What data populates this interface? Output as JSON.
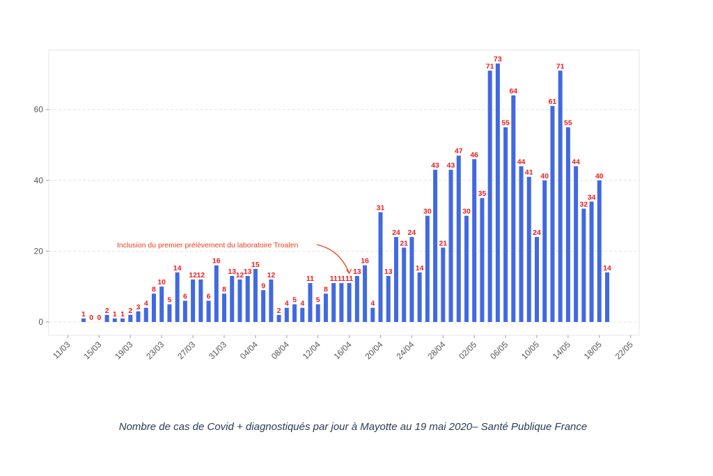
{
  "chart_data": {
    "type": "bar",
    "title": "",
    "xlabel": "",
    "ylabel": "",
    "ylim": [
      0,
      75
    ],
    "y_ticks": [
      0,
      20,
      40,
      60
    ],
    "grid": true,
    "colors": {
      "bar": "#4169e1",
      "label": "#ee1c1c",
      "annotation": "#ee3b1c",
      "grid": "#e3e3e3"
    },
    "x_ticks": [
      "11/03",
      "15/03",
      "19/03",
      "23/03",
      "27/03",
      "31/03",
      "04/04",
      "08/04",
      "12/04",
      "16/04",
      "20/04",
      "24/04",
      "28/04",
      "02/05",
      "06/05",
      "10/05",
      "14/05",
      "18/05",
      "22/05"
    ],
    "categories": [
      "13/03",
      "14/03",
      "15/03",
      "16/03",
      "17/03",
      "18/03",
      "19/03",
      "20/03",
      "21/03",
      "22/03",
      "23/03",
      "24/03",
      "25/03",
      "26/03",
      "27/03",
      "28/03",
      "29/03",
      "30/03",
      "31/03",
      "01/04",
      "02/04",
      "03/04",
      "04/04",
      "05/04",
      "06/04",
      "07/04",
      "08/04",
      "09/04",
      "10/04",
      "11/04",
      "12/04",
      "13/04",
      "14/04",
      "15/04",
      "16/04",
      "17/04",
      "18/04",
      "19/04",
      "20/04",
      "21/04",
      "22/04",
      "23/04",
      "24/04",
      "25/04",
      "26/04",
      "27/04",
      "28/04",
      "29/04",
      "30/04",
      "01/05",
      "02/05",
      "03/05",
      "04/05",
      "05/05",
      "06/05",
      "07/05",
      "08/05",
      "09/05",
      "10/05",
      "11/05",
      "12/05",
      "13/05",
      "14/05",
      "15/05",
      "16/05",
      "17/05",
      "18/05",
      "19/05"
    ],
    "values": [
      1,
      0,
      0,
      2,
      1,
      1,
      2,
      3,
      4,
      8,
      10,
      5,
      14,
      6,
      12,
      12,
      6,
      16,
      8,
      13,
      12,
      13,
      15,
      9,
      12,
      2,
      4,
      5,
      4,
      11,
      5,
      8,
      11,
      11,
      11,
      13,
      16,
      4,
      31,
      13,
      24,
      21,
      24,
      14,
      30,
      43,
      21,
      43,
      47,
      30,
      46,
      35,
      71,
      73,
      55,
      64,
      44,
      41,
      24,
      40,
      61,
      71,
      55,
      44,
      32,
      34,
      40,
      14
    ],
    "annotations": [
      {
        "text": "Inclusion du premier prélèvement du laboratoire Troalen",
        "target": "16/04"
      }
    ]
  },
  "caption": "Nombre de cas de Covid + diagnostiqués par jour à Mayotte au 19 mai 2020– Santé Publique France"
}
